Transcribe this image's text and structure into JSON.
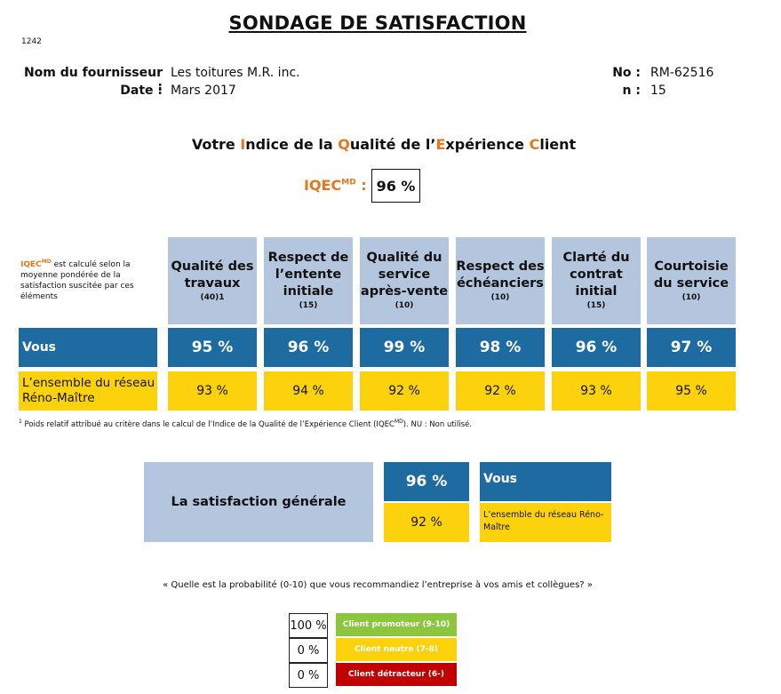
{
  "title": "SONDAGE DE SATISFACTION",
  "doc_number": "1242",
  "supplier": {
    "label": "Nom du fournisseur :",
    "value": "Les toitures M.R. inc."
  },
  "date": {
    "label": "Date :",
    "value": "Mars 2017"
  },
  "no": {
    "label": "No :",
    "value": "RM-62516"
  },
  "n": {
    "label": "n :",
    "value": "15"
  },
  "subtitle": {
    "parts": [
      "Votre ",
      "I",
      "ndice de la ",
      "Q",
      "ualité de l’",
      "E",
      "xpérience ",
      "C",
      "lient"
    ]
  },
  "iqec": {
    "label": "IQEC",
    "sup": "MD",
    "colon": ":",
    "value": "96 %"
  },
  "note": {
    "prefix": "IQEC",
    "sup": "MD",
    "text": " est calculé selon la moyenne pondérée de la satisfaction suscitée par ces éléments"
  },
  "criteria": [
    {
      "name_lines": [
        "Qualité des",
        "travaux"
      ],
      "weight": "(40)1"
    },
    {
      "name_lines": [
        "Respect de",
        "l’entente",
        "initiale"
      ],
      "weight": "(15)"
    },
    {
      "name_lines": [
        "Qualité du",
        "service",
        "après-vente"
      ],
      "weight": "(10)"
    },
    {
      "name_lines": [
        "Respect des",
        "échéanciers"
      ],
      "weight": "(10)"
    },
    {
      "name_lines": [
        "Clarté du",
        "contrat",
        "initial"
      ],
      "weight": "(15)"
    },
    {
      "name_lines": [
        "Courtoisie",
        "du service"
      ],
      "weight": "(10)"
    }
  ],
  "rows": {
    "vous": {
      "label": "Vous",
      "values": [
        "95 %",
        "96 %",
        "99 %",
        "98 %",
        "96 %",
        "97 %"
      ]
    },
    "network": {
      "label_lines": [
        "L’ensemble du réseau",
        "Réno-Maître"
      ],
      "values": [
        "93 %",
        "94 %",
        "92 %",
        "92 %",
        "93 %",
        "95 %"
      ]
    }
  },
  "footnote": {
    "sup": "1",
    "text": " Poids relatif attribué au critère dans le calcul de l’Indice de la Qualité de l’Expérience Client (IQEC",
    "sup2": "MD",
    "text2": "). NU : Non utilisé."
  },
  "general": {
    "label": "La satisfaction générale",
    "vous_value": "96 %",
    "network_value": "92 %",
    "legend_vous": "Vous",
    "legend_network": "L’ensemble du réseau Réno-Maître"
  },
  "question": "« Quelle est la probabilité (0-10) que vous recommandiez l’entreprise à vos amis et collègues? »",
  "nps": [
    {
      "value": "100 %",
      "label": "Client promoteur (9-10)",
      "color": "#8cc63f"
    },
    {
      "value": "0 %",
      "label": "Client neutre (7-8)",
      "color": "#fcd20d"
    },
    {
      "value": "0 %",
      "label": "Client détracteur (6-)",
      "color": "#c00000"
    }
  ],
  "colors": {
    "accent_orange": "#e8761e",
    "header_blue_grey": "#b4c6de",
    "dark_blue": "#1e6ba1",
    "yellow": "#fcd20d"
  }
}
